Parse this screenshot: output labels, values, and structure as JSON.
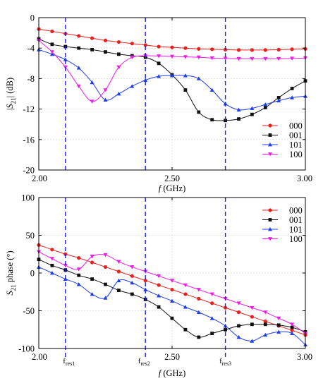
{
  "chart_data": [
    {
      "type": "line",
      "ylabel": "|S21| (dB)",
      "xlabel": "f (GHz)",
      "xlim": [
        2.0,
        3.0
      ],
      "ylim": [
        -20,
        0
      ],
      "x_ticks": [
        2.0,
        2.5,
        3.0
      ],
      "x_tick_labels": [
        "2.00",
        "2.50",
        "3.00"
      ],
      "y_ticks": [
        0,
        -4,
        -8,
        -12,
        -16,
        -20
      ],
      "y_tick_labels": [
        "0",
        "-4",
        "-8",
        "-12",
        "-16",
        "-20"
      ],
      "grid": true,
      "legend_position": "bottom-right",
      "vlines": [
        2.1,
        2.4,
        2.7
      ],
      "series": [
        {
          "name": "000",
          "color": "#e8211d",
          "marker": "circle",
          "points": [
            [
              2.0,
              -1.5
            ],
            [
              2.05,
              -1.8
            ],
            [
              2.1,
              -2.1
            ],
            [
              2.15,
              -2.4
            ],
            [
              2.2,
              -2.7
            ],
            [
              2.25,
              -3.0
            ],
            [
              2.3,
              -3.2
            ],
            [
              2.35,
              -3.4
            ],
            [
              2.4,
              -3.6
            ],
            [
              2.45,
              -3.8
            ],
            [
              2.5,
              -3.9
            ],
            [
              2.55,
              -4.0
            ],
            [
              2.6,
              -4.1
            ],
            [
              2.65,
              -4.15
            ],
            [
              2.7,
              -4.2
            ],
            [
              2.75,
              -4.25
            ],
            [
              2.8,
              -4.25
            ],
            [
              2.85,
              -4.25
            ],
            [
              2.9,
              -4.2
            ],
            [
              2.95,
              -4.15
            ],
            [
              3.0,
              -4.1
            ]
          ]
        },
        {
          "name": "001",
          "color": "#111111",
          "marker": "square",
          "points": [
            [
              2.0,
              -2.8
            ],
            [
              2.05,
              -3.5
            ],
            [
              2.1,
              -3.8
            ],
            [
              2.15,
              -4.0
            ],
            [
              2.2,
              -4.2
            ],
            [
              2.25,
              -4.5
            ],
            [
              2.3,
              -4.8
            ],
            [
              2.35,
              -5.0
            ],
            [
              2.4,
              -5.2
            ],
            [
              2.45,
              -6.0
            ],
            [
              2.5,
              -7.5
            ],
            [
              2.55,
              -9.5
            ],
            [
              2.6,
              -12.4
            ],
            [
              2.65,
              -13.4
            ],
            [
              2.7,
              -13.5
            ],
            [
              2.75,
              -13.3
            ],
            [
              2.8,
              -12.7
            ],
            [
              2.85,
              -11.8
            ],
            [
              2.9,
              -10.5
            ],
            [
              2.95,
              -9.3
            ],
            [
              3.0,
              -8.3
            ]
          ]
        },
        {
          "name": "101",
          "color": "#1f3fe8",
          "marker": "triangle-up",
          "points": [
            [
              2.0,
              -4.2
            ],
            [
              2.05,
              -4.8
            ],
            [
              2.1,
              -5.5
            ],
            [
              2.15,
              -6.6
            ],
            [
              2.2,
              -8.5
            ],
            [
              2.25,
              -10.8
            ],
            [
              2.3,
              -10.0
            ],
            [
              2.35,
              -9.0
            ],
            [
              2.4,
              -8.2
            ],
            [
              2.45,
              -7.7
            ],
            [
              2.5,
              -7.6
            ],
            [
              2.55,
              -7.6
            ],
            [
              2.6,
              -8.0
            ],
            [
              2.65,
              -9.5
            ],
            [
              2.7,
              -11.3
            ],
            [
              2.75,
              -12.1
            ],
            [
              2.8,
              -11.9
            ],
            [
              2.85,
              -11.4
            ],
            [
              2.9,
              -10.9
            ],
            [
              2.95,
              -10.5
            ],
            [
              3.0,
              -10.3
            ]
          ]
        },
        {
          "name": "100",
          "color": "#f01de6",
          "marker": "triangle-down",
          "points": [
            [
              2.0,
              -3.0
            ],
            [
              2.05,
              -4.5
            ],
            [
              2.1,
              -6.5
            ],
            [
              2.15,
              -9.0
            ],
            [
              2.2,
              -11.0
            ],
            [
              2.25,
              -9.5
            ],
            [
              2.3,
              -6.5
            ],
            [
              2.35,
              -5.2
            ],
            [
              2.4,
              -5.0
            ],
            [
              2.45,
              -5.05
            ],
            [
              2.5,
              -5.1
            ],
            [
              2.55,
              -5.15
            ],
            [
              2.6,
              -5.2
            ],
            [
              2.65,
              -5.3
            ],
            [
              2.7,
              -5.35
            ],
            [
              2.75,
              -5.4
            ],
            [
              2.8,
              -5.4
            ],
            [
              2.85,
              -5.4
            ],
            [
              2.9,
              -5.4
            ],
            [
              2.95,
              -5.35
            ],
            [
              3.0,
              -5.3
            ]
          ]
        }
      ]
    },
    {
      "type": "line",
      "ylabel": "S21 phase (°)",
      "xlabel": "f (GHz)",
      "xlim": [
        2.0,
        3.0
      ],
      "ylim": [
        -100,
        100
      ],
      "x_ticks": [
        2.0,
        2.5,
        3.0
      ],
      "x_tick_labels": [
        "2.00",
        "2.50",
        "3.00"
      ],
      "y_ticks": [
        100,
        50,
        0,
        -50,
        -100
      ],
      "y_tick_labels": [
        "100",
        "50",
        "0",
        "-50",
        "-100"
      ],
      "grid": true,
      "legend_position": "top-right",
      "vlines": [
        2.1,
        2.4,
        2.7
      ],
      "annotations": [
        "fres1",
        "fres2",
        "fres3"
      ],
      "series": [
        {
          "name": "000",
          "color": "#e8211d",
          "marker": "circle",
          "points": [
            [
              2.0,
              37
            ],
            [
              2.05,
              31
            ],
            [
              2.1,
              25
            ],
            [
              2.15,
              20
            ],
            [
              2.2,
              14
            ],
            [
              2.25,
              8
            ],
            [
              2.3,
              2
            ],
            [
              2.35,
              -4
            ],
            [
              2.4,
              -10
            ],
            [
              2.45,
              -16
            ],
            [
              2.5,
              -22
            ],
            [
              2.55,
              -28
            ],
            [
              2.6,
              -34
            ],
            [
              2.65,
              -40
            ],
            [
              2.7,
              -46
            ],
            [
              2.75,
              -52
            ],
            [
              2.8,
              -58
            ],
            [
              2.85,
              -64
            ],
            [
              2.9,
              -70
            ],
            [
              2.95,
              -76
            ],
            [
              3.0,
              -82
            ]
          ]
        },
        {
          "name": "001",
          "color": "#111111",
          "marker": "square",
          "points": [
            [
              2.0,
              18
            ],
            [
              2.05,
              10
            ],
            [
              2.1,
              4
            ],
            [
              2.15,
              -3
            ],
            [
              2.2,
              -8
            ],
            [
              2.25,
              -15
            ],
            [
              2.3,
              -23
            ],
            [
              2.35,
              -28
            ],
            [
              2.4,
              -35
            ],
            [
              2.45,
              -45
            ],
            [
              2.5,
              -60
            ],
            [
              2.55,
              -75
            ],
            [
              2.6,
              -85
            ],
            [
              2.65,
              -80
            ],
            [
              2.7,
              -75
            ],
            [
              2.75,
              -70
            ],
            [
              2.8,
              -68
            ],
            [
              2.85,
              -68
            ],
            [
              2.9,
              -69
            ],
            [
              2.95,
              -72
            ],
            [
              3.0,
              -78
            ]
          ]
        },
        {
          "name": "101",
          "color": "#1f3fe8",
          "marker": "triangle-up",
          "points": [
            [
              2.0,
              8
            ],
            [
              2.05,
              0
            ],
            [
              2.1,
              -8
            ],
            [
              2.15,
              -15
            ],
            [
              2.2,
              -28
            ],
            [
              2.25,
              -33
            ],
            [
              2.3,
              -10
            ],
            [
              2.35,
              -13
            ],
            [
              2.4,
              -22
            ],
            [
              2.45,
              -30
            ],
            [
              2.5,
              -37
            ],
            [
              2.55,
              -45
            ],
            [
              2.6,
              -52
            ],
            [
              2.65,
              -60
            ],
            [
              2.7,
              -70
            ],
            [
              2.75,
              -85
            ],
            [
              2.8,
              -90
            ],
            [
              2.85,
              -82
            ],
            [
              2.9,
              -78
            ],
            [
              2.95,
              -80
            ],
            [
              3.0,
              -95
            ]
          ]
        },
        {
          "name": "100",
          "color": "#f01de6",
          "marker": "triangle-down",
          "points": [
            [
              2.0,
              28
            ],
            [
              2.05,
              19
            ],
            [
              2.1,
              10
            ],
            [
              2.15,
              5
            ],
            [
              2.2,
              22
            ],
            [
              2.25,
              24
            ],
            [
              2.3,
              15
            ],
            [
              2.35,
              8
            ],
            [
              2.4,
              2
            ],
            [
              2.45,
              -4
            ],
            [
              2.5,
              -10
            ],
            [
              2.55,
              -16
            ],
            [
              2.6,
              -22
            ],
            [
              2.65,
              -28
            ],
            [
              2.7,
              -34
            ],
            [
              2.75,
              -40
            ],
            [
              2.8,
              -46
            ],
            [
              2.85,
              -52
            ],
            [
              2.9,
              -60
            ],
            [
              2.95,
              -68
            ],
            [
              3.0,
              -80
            ]
          ]
        }
      ]
    }
  ]
}
